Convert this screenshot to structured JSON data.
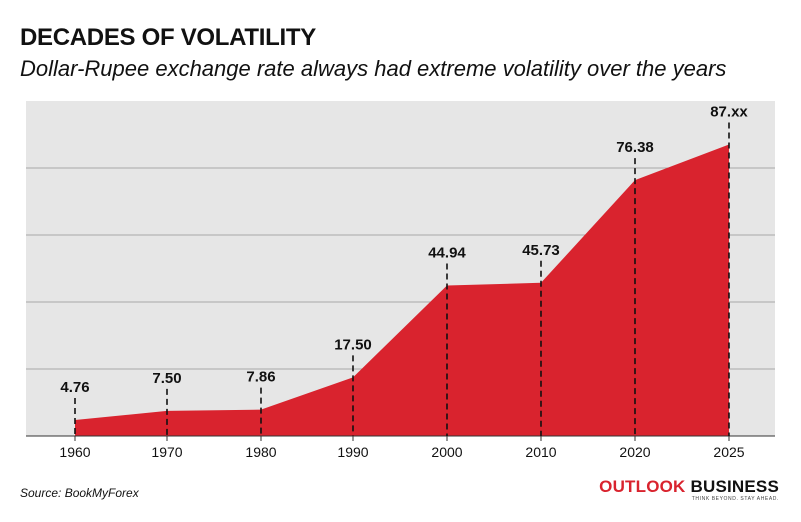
{
  "header": {
    "title": "DECADES OF VOLATILITY",
    "subtitle": "Dollar-Rupee exchange rate always had extreme volatility over the years"
  },
  "footer": {
    "source": "Source: BookMyForex",
    "brand_word1": "OUTLOOK",
    "brand_word2": "BUSINESS",
    "brand_tagline": "THINK BEYOND. STAY AHEAD."
  },
  "chart_data": {
    "type": "area",
    "title": "DECADES OF VOLATILITY",
    "subtitle": "Dollar-Rupee exchange rate always had extreme volatility over the years",
    "categories": [
      "1960",
      "1970",
      "1980",
      "1990",
      "2000",
      "2010",
      "2020",
      "2025"
    ],
    "values": [
      4.76,
      7.5,
      7.86,
      17.5,
      44.94,
      45.73,
      76.38,
      87
    ],
    "data_labels": [
      "4.76",
      "7.50",
      "7.86",
      "17.50",
      "44.94",
      "45.73",
      "76.38",
      "87.xx"
    ],
    "ylim": [
      0,
      100
    ],
    "grid": true,
    "colors": {
      "area": "#d9232e",
      "background": "#e6e6e6",
      "grid": "#a8a8a8",
      "guide": "#111111"
    }
  }
}
